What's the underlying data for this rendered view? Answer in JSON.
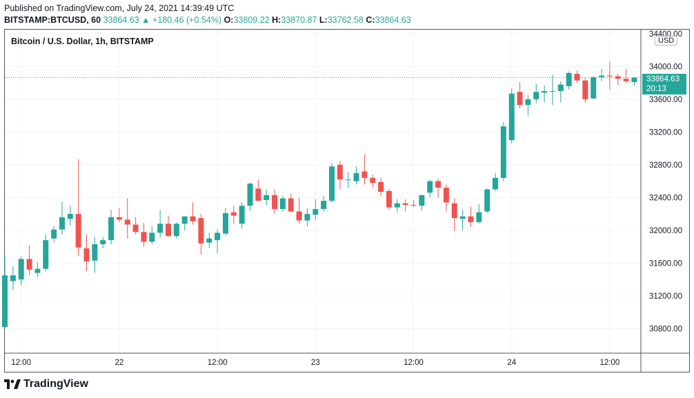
{
  "header": {
    "published": "Published on TradingView.com, July 24, 2021 14:39:49 UTC",
    "symbol": "BITSTAMP:BTCUSD, 60",
    "last": "33864.63",
    "change": "▲ +180.46 (+0.54%)",
    "o_label": "O:",
    "o_value": "33809.22",
    "h_label": "H:",
    "h_value": "33870.87",
    "l_label": "L:",
    "l_value": "33762.58",
    "c_label": "C:",
    "c_value": "33864.63"
  },
  "chart_title": "Bitcoin / U.S. Dollar, 1h, BITSTAMP",
  "currency": "USD",
  "price_tag": {
    "price": "33864.63",
    "countdown": "20:13"
  },
  "footer": {
    "brand": "TradingView"
  },
  "colors": {
    "up": "#26a69a",
    "down": "#ef5350",
    "grid": "#f0f3fa",
    "axis": "#50535e"
  },
  "chart_data": {
    "type": "candlestick",
    "title": "Bitcoin / U.S. Dollar, 1h, BITSTAMP",
    "ylabel": "USD",
    "ylim": [
      30500,
      34450
    ],
    "yticks": [
      30800,
      31200,
      31600,
      32000,
      32400,
      32800,
      33200,
      33600,
      34000,
      34400
    ],
    "ytick_labels": [
      "30800.00",
      "31200.00",
      "31600.00",
      "32000.00",
      "32400.00",
      "32800.00",
      "33200.00",
      "33600.00",
      "34000.00",
      "34400.00"
    ],
    "xticks": [
      {
        "label": "12:00",
        "bar": 2
      },
      {
        "label": "22",
        "bar": 14
      },
      {
        "label": "12:00",
        "bar": 26
      },
      {
        "label": "23",
        "bar": 38
      },
      {
        "label": "12:00",
        "bar": 50
      },
      {
        "label": "24",
        "bar": 62
      },
      {
        "label": "12:00",
        "bar": 74
      }
    ],
    "last_price": 33864.63,
    "candles": [
      {
        "o": 30820,
        "h": 31700,
        "l": 30800,
        "c": 31450
      },
      {
        "o": 31380,
        "h": 31560,
        "l": 31270,
        "c": 31450
      },
      {
        "o": 31400,
        "h": 31680,
        "l": 31330,
        "c": 31650
      },
      {
        "o": 31650,
        "h": 31820,
        "l": 31450,
        "c": 31520
      },
      {
        "o": 31480,
        "h": 31610,
        "l": 31430,
        "c": 31530
      },
      {
        "o": 31530,
        "h": 31950,
        "l": 31500,
        "c": 31880
      },
      {
        "o": 31900,
        "h": 32050,
        "l": 31850,
        "c": 32010
      },
      {
        "o": 32010,
        "h": 32350,
        "l": 31950,
        "c": 32160
      },
      {
        "o": 32140,
        "h": 32300,
        "l": 32060,
        "c": 32200
      },
      {
        "o": 32200,
        "h": 32870,
        "l": 31690,
        "c": 31790
      },
      {
        "o": 31780,
        "h": 31950,
        "l": 31500,
        "c": 31620
      },
      {
        "o": 31630,
        "h": 31920,
        "l": 31480,
        "c": 31830
      },
      {
        "o": 31830,
        "h": 31920,
        "l": 31780,
        "c": 31880
      },
      {
        "o": 31880,
        "h": 32250,
        "l": 31830,
        "c": 32160
      },
      {
        "o": 32160,
        "h": 32270,
        "l": 32100,
        "c": 32130
      },
      {
        "o": 32130,
        "h": 32390,
        "l": 31900,
        "c": 32070
      },
      {
        "o": 32070,
        "h": 32160,
        "l": 31950,
        "c": 31980
      },
      {
        "o": 31980,
        "h": 32090,
        "l": 31800,
        "c": 31860
      },
      {
        "o": 31860,
        "h": 32050,
        "l": 31830,
        "c": 31970
      },
      {
        "o": 31970,
        "h": 32250,
        "l": 31910,
        "c": 32080
      },
      {
        "o": 32080,
        "h": 32180,
        "l": 31920,
        "c": 31930
      },
      {
        "o": 31930,
        "h": 32100,
        "l": 31900,
        "c": 32080
      },
      {
        "o": 32080,
        "h": 32160,
        "l": 32000,
        "c": 32170
      },
      {
        "o": 32170,
        "h": 32340,
        "l": 32070,
        "c": 32110
      },
      {
        "o": 32150,
        "h": 32200,
        "l": 31700,
        "c": 31840
      },
      {
        "o": 31850,
        "h": 31970,
        "l": 31780,
        "c": 31900
      },
      {
        "o": 31880,
        "h": 32010,
        "l": 31720,
        "c": 31970
      },
      {
        "o": 31960,
        "h": 32270,
        "l": 31930,
        "c": 32210
      },
      {
        "o": 32220,
        "h": 32300,
        "l": 32080,
        "c": 32180
      },
      {
        "o": 32080,
        "h": 32340,
        "l": 32020,
        "c": 32300
      },
      {
        "o": 32300,
        "h": 32580,
        "l": 32240,
        "c": 32570
      },
      {
        "o": 32510,
        "h": 32620,
        "l": 32370,
        "c": 32360
      },
      {
        "o": 32370,
        "h": 32500,
        "l": 32310,
        "c": 32430
      },
      {
        "o": 32430,
        "h": 32500,
        "l": 32200,
        "c": 32260
      },
      {
        "o": 32260,
        "h": 32420,
        "l": 32230,
        "c": 32390
      },
      {
        "o": 32390,
        "h": 32450,
        "l": 32220,
        "c": 32230
      },
      {
        "o": 32230,
        "h": 32400,
        "l": 32080,
        "c": 32120
      },
      {
        "o": 32120,
        "h": 32270,
        "l": 32050,
        "c": 32200
      },
      {
        "o": 32190,
        "h": 32380,
        "l": 32120,
        "c": 32260
      },
      {
        "o": 32260,
        "h": 32420,
        "l": 32230,
        "c": 32360
      },
      {
        "o": 32360,
        "h": 32820,
        "l": 32340,
        "c": 32780
      },
      {
        "o": 32800,
        "h": 32850,
        "l": 32500,
        "c": 32620
      },
      {
        "o": 32620,
        "h": 32710,
        "l": 32520,
        "c": 32620
      },
      {
        "o": 32600,
        "h": 32780,
        "l": 32560,
        "c": 32700
      },
      {
        "o": 32720,
        "h": 32930,
        "l": 32560,
        "c": 32640
      },
      {
        "o": 32640,
        "h": 32680,
        "l": 32520,
        "c": 32580
      },
      {
        "o": 32590,
        "h": 32640,
        "l": 32420,
        "c": 32470
      },
      {
        "o": 32480,
        "h": 32500,
        "l": 32250,
        "c": 32280
      },
      {
        "o": 32280,
        "h": 32380,
        "l": 32220,
        "c": 32330
      },
      {
        "o": 32330,
        "h": 32380,
        "l": 32230,
        "c": 32310
      },
      {
        "o": 32310,
        "h": 32370,
        "l": 32290,
        "c": 32300
      },
      {
        "o": 32300,
        "h": 32420,
        "l": 32240,
        "c": 32430
      },
      {
        "o": 32460,
        "h": 32620,
        "l": 32400,
        "c": 32600
      },
      {
        "o": 32600,
        "h": 32630,
        "l": 32400,
        "c": 32520
      },
      {
        "o": 32520,
        "h": 32560,
        "l": 32230,
        "c": 32340
      },
      {
        "o": 32330,
        "h": 32390,
        "l": 31990,
        "c": 32150
      },
      {
        "o": 32140,
        "h": 32250,
        "l": 32000,
        "c": 32170
      },
      {
        "o": 32170,
        "h": 32290,
        "l": 32040,
        "c": 32100
      },
      {
        "o": 32100,
        "h": 32320,
        "l": 32080,
        "c": 32220
      },
      {
        "o": 32230,
        "h": 32510,
        "l": 32210,
        "c": 32500
      },
      {
        "o": 32500,
        "h": 32700,
        "l": 32480,
        "c": 32640
      },
      {
        "o": 32640,
        "h": 33320,
        "l": 32600,
        "c": 33270
      },
      {
        "o": 33100,
        "h": 33730,
        "l": 33060,
        "c": 33670
      },
      {
        "o": 33690,
        "h": 33810,
        "l": 33490,
        "c": 33530
      },
      {
        "o": 33530,
        "h": 33650,
        "l": 33400,
        "c": 33600
      },
      {
        "o": 33600,
        "h": 33790,
        "l": 33550,
        "c": 33690
      },
      {
        "o": 33680,
        "h": 33770,
        "l": 33560,
        "c": 33700
      },
      {
        "o": 33700,
        "h": 33900,
        "l": 33530,
        "c": 33700
      },
      {
        "o": 33700,
        "h": 33820,
        "l": 33560,
        "c": 33780
      },
      {
        "o": 33760,
        "h": 33940,
        "l": 33720,
        "c": 33920
      },
      {
        "o": 33910,
        "h": 33950,
        "l": 33800,
        "c": 33830
      },
      {
        "o": 33830,
        "h": 33860,
        "l": 33560,
        "c": 33600
      },
      {
        "o": 33610,
        "h": 33880,
        "l": 33600,
        "c": 33870
      },
      {
        "o": 33870,
        "h": 33970,
        "l": 33820,
        "c": 33890
      },
      {
        "o": 33890,
        "h": 34060,
        "l": 33720,
        "c": 33880
      },
      {
        "o": 33880,
        "h": 33910,
        "l": 33770,
        "c": 33850
      },
      {
        "o": 33850,
        "h": 33970,
        "l": 33800,
        "c": 33820
      },
      {
        "o": 33809.22,
        "h": 33870.87,
        "l": 33762.58,
        "c": 33864.63
      }
    ]
  }
}
